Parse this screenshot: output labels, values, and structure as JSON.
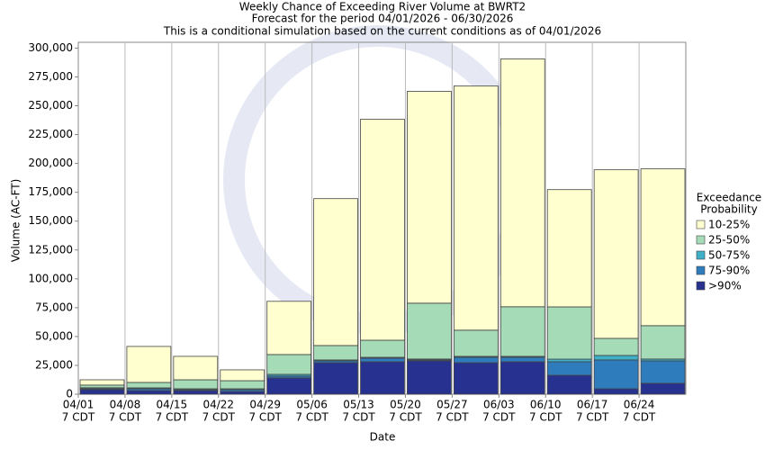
{
  "chart_data": {
    "type": "stacked-bar",
    "title": "Weekly Chance of Exceeding River Volume at BWRT2",
    "subtitle": "Forecast for the period 04/01/2026 - 06/30/2026",
    "note": "This is a conditional simulation based on the current conditions as of 04/01/2026",
    "x_label": "Date",
    "y_label": "Volume (AC-FT)",
    "legend_title": [
      "Exceedance",
      "Probability"
    ],
    "legend_position": "right",
    "xgrid": true,
    "categories": [
      [
        "04/01",
        "7 CDT"
      ],
      [
        "04/08",
        "7 CDT"
      ],
      [
        "04/15",
        "7 CDT"
      ],
      [
        "04/22",
        "7 CDT"
      ],
      [
        "04/29",
        "7 CDT"
      ],
      [
        "05/06",
        "7 CDT"
      ],
      [
        "05/13",
        "7 CDT"
      ],
      [
        "05/20",
        "7 CDT"
      ],
      [
        "05/27",
        "7 CDT"
      ],
      [
        "06/03",
        "7 CDT"
      ],
      [
        "06/10",
        "7 CDT"
      ],
      [
        "06/17",
        "7 CDT"
      ],
      [
        "06/24",
        "7 CDT"
      ]
    ],
    "ylim": [
      0,
      305000
    ],
    "yticks": [
      {
        "value": 0,
        "label": "0"
      },
      {
        "value": 25000,
        "label": "25,000"
      },
      {
        "value": 50000,
        "label": "50,000"
      },
      {
        "value": 75000,
        "label": "75,000"
      },
      {
        "value": 100000,
        "label": "100,000"
      },
      {
        "value": 125000,
        "label": "125,000"
      },
      {
        "value": 150000,
        "label": "150,000"
      },
      {
        "value": 175000,
        "label": "175,000"
      },
      {
        "value": 200000,
        "label": "200,000"
      },
      {
        "value": 225000,
        "label": "225,000"
      },
      {
        "value": 250000,
        "label": "250,000"
      },
      {
        "value": 275000,
        "label": "275,000"
      },
      {
        "value": 300000,
        "label": "300,000"
      }
    ],
    "series": [
      {
        "name": ">90%",
        "color": "#27318f",
        "values": [
          4000,
          3100,
          3100,
          2300,
          14100,
          27300,
          28100,
          28900,
          27300,
          28100,
          16400,
          4700,
          9400
        ]
      },
      {
        "name": "75-90%",
        "color": "#2f7cbd",
        "values": [
          800,
          1600,
          800,
          1600,
          1600,
          1600,
          3100,
          800,
          4700,
          3900,
          11700,
          25000,
          19500
        ]
      },
      {
        "name": "50-75%",
        "color": "#3fb0c8",
        "values": [
          800,
          800,
          800,
          800,
          1500,
          800,
          800,
          800,
          800,
          800,
          2300,
          3900,
          1600
        ]
      },
      {
        "name": "25-50%",
        "color": "#a5dbb7",
        "values": [
          2300,
          4700,
          7800,
          7000,
          17200,
          12500,
          14800,
          48400,
          22700,
          43000,
          45300,
          14800,
          28900
        ]
      },
      {
        "name": "10-25%",
        "color": "#ffffcf",
        "values": [
          4600,
          31200,
          20300,
          9400,
          46100,
          127300,
          191500,
          183600,
          211700,
          214800,
          101600,
          146100,
          135900
        ]
      }
    ]
  }
}
